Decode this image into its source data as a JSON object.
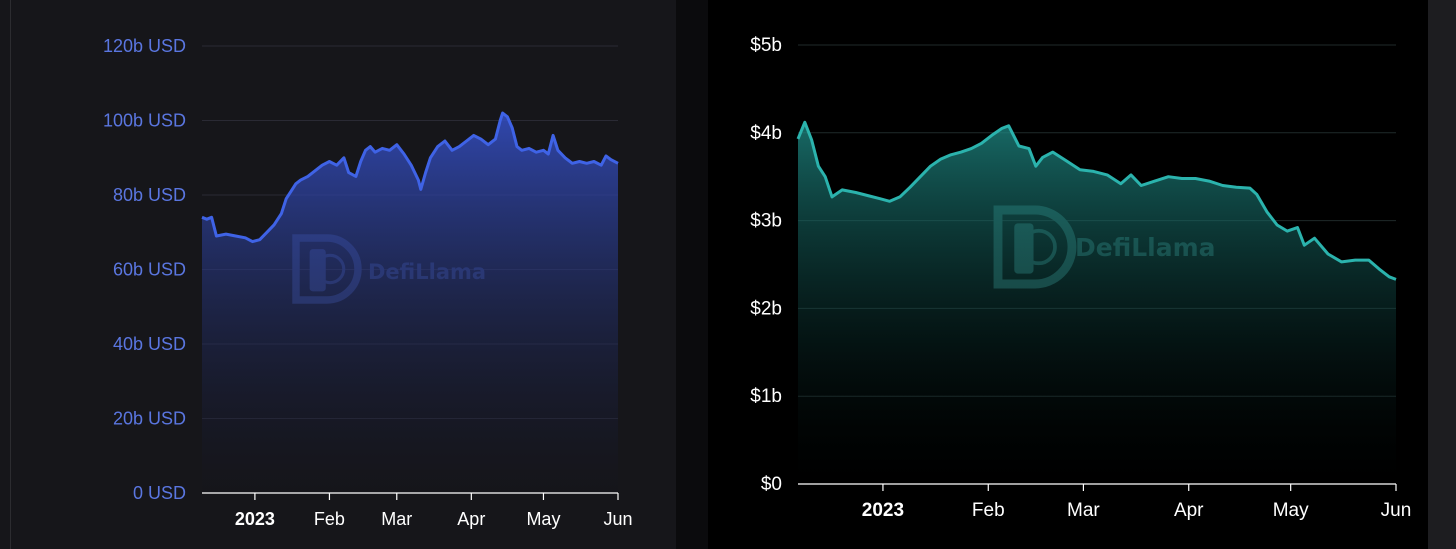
{
  "chart_data": [
    {
      "type": "area",
      "title": "",
      "xlabel": "",
      "ylabel": "",
      "unit_suffix": " USD",
      "ylim": [
        0,
        120
      ],
      "yticks": [
        0,
        20,
        40,
        60,
        80,
        100,
        120
      ],
      "ytick_labels": [
        "0 USD",
        "20b USD",
        "40b USD",
        "60b USD",
        "80b USD",
        "100b USD",
        "120b USD"
      ],
      "xticks": [
        {
          "label": "2023",
          "date": "2023-01-01",
          "bold": true
        },
        {
          "label": "Feb",
          "date": "2023-02-01",
          "bold": false
        },
        {
          "label": "Mar",
          "date": "2023-03-01",
          "bold": false
        },
        {
          "label": "Apr",
          "date": "2023-04-01",
          "bold": false
        },
        {
          "label": "May",
          "date": "2023-05-01",
          "bold": false
        },
        {
          "label": "Jun",
          "date": "2023-06-01",
          "bold": false
        }
      ],
      "xrange": [
        "2022-12-10",
        "2023-06-01"
      ],
      "grid": true,
      "line_color": "#3f63e6",
      "tick_color": "#5a76e0",
      "points": [
        [
          "2022-12-10",
          74
        ],
        [
          "2022-12-12",
          73.5
        ],
        [
          "2022-12-14",
          74
        ],
        [
          "2022-12-16",
          69
        ],
        [
          "2022-12-20",
          69.5
        ],
        [
          "2022-12-24",
          69
        ],
        [
          "2022-12-28",
          68.5
        ],
        [
          "2022-12-31",
          67.5
        ],
        [
          "2023-01-03",
          68
        ],
        [
          "2023-01-06",
          70
        ],
        [
          "2023-01-09",
          72
        ],
        [
          "2023-01-12",
          75
        ],
        [
          "2023-01-14",
          79
        ],
        [
          "2023-01-16",
          81
        ],
        [
          "2023-01-18",
          83
        ],
        [
          "2023-01-20",
          84
        ],
        [
          "2023-01-23",
          85
        ],
        [
          "2023-01-26",
          86.5
        ],
        [
          "2023-01-29",
          88
        ],
        [
          "2023-02-01",
          89
        ],
        [
          "2023-02-04",
          88
        ],
        [
          "2023-02-07",
          90
        ],
        [
          "2023-02-09",
          86
        ],
        [
          "2023-02-12",
          85
        ],
        [
          "2023-02-14",
          89
        ],
        [
          "2023-02-16",
          92
        ],
        [
          "2023-02-18",
          93
        ],
        [
          "2023-02-20",
          91.5
        ],
        [
          "2023-02-23",
          92.5
        ],
        [
          "2023-02-26",
          92
        ],
        [
          "2023-03-01",
          93.5
        ],
        [
          "2023-03-04",
          91
        ],
        [
          "2023-03-07",
          88
        ],
        [
          "2023-03-10",
          84
        ],
        [
          "2023-03-11",
          81.5
        ],
        [
          "2023-03-13",
          86
        ],
        [
          "2023-03-15",
          90
        ],
        [
          "2023-03-18",
          93
        ],
        [
          "2023-03-21",
          94.5
        ],
        [
          "2023-03-24",
          92
        ],
        [
          "2023-03-27",
          93
        ],
        [
          "2023-03-30",
          94.5
        ],
        [
          "2023-04-02",
          96
        ],
        [
          "2023-04-05",
          95
        ],
        [
          "2023-04-08",
          93.5
        ],
        [
          "2023-04-11",
          95
        ],
        [
          "2023-04-13",
          100
        ],
        [
          "2023-04-14",
          102
        ],
        [
          "2023-04-16",
          101
        ],
        [
          "2023-04-18",
          98
        ],
        [
          "2023-04-20",
          93
        ],
        [
          "2023-04-22",
          92
        ],
        [
          "2023-04-25",
          92.5
        ],
        [
          "2023-04-28",
          91.5
        ],
        [
          "2023-05-01",
          92
        ],
        [
          "2023-05-03",
          91
        ],
        [
          "2023-05-05",
          96
        ],
        [
          "2023-05-07",
          92
        ],
        [
          "2023-05-10",
          90
        ],
        [
          "2023-05-13",
          88.5
        ],
        [
          "2023-05-16",
          89
        ],
        [
          "2023-05-19",
          88.5
        ],
        [
          "2023-05-22",
          89
        ],
        [
          "2023-05-25",
          88
        ],
        [
          "2023-05-27",
          90.5
        ],
        [
          "2023-05-29",
          89.5
        ],
        [
          "2023-06-01",
          88.5
        ]
      ]
    },
    {
      "type": "area",
      "title": "",
      "xlabel": "",
      "ylabel": "",
      "unit_prefix": "$",
      "ylim": [
        0,
        5
      ],
      "yticks": [
        0,
        1,
        2,
        3,
        4,
        5
      ],
      "ytick_labels": [
        "$0",
        "$1b",
        "$2b",
        "$3b",
        "$4b",
        "$5b"
      ],
      "xticks": [
        {
          "label": "2023",
          "date": "2023-01-01",
          "bold": true
        },
        {
          "label": "Feb",
          "date": "2023-02-01",
          "bold": false
        },
        {
          "label": "Mar",
          "date": "2023-03-01",
          "bold": false
        },
        {
          "label": "Apr",
          "date": "2023-04-01",
          "bold": false
        },
        {
          "label": "May",
          "date": "2023-05-01",
          "bold": false
        },
        {
          "label": "Jun",
          "date": "2023-06-01",
          "bold": false
        }
      ],
      "xrange": [
        "2022-12-07",
        "2023-06-01"
      ],
      "grid": true,
      "line_color": "#2bb3ad",
      "tick_color": "#ffffff",
      "points": [
        [
          "2022-12-07",
          3.93
        ],
        [
          "2022-12-09",
          4.12
        ],
        [
          "2022-12-11",
          3.92
        ],
        [
          "2022-12-13",
          3.62
        ],
        [
          "2022-12-15",
          3.5
        ],
        [
          "2022-12-17",
          3.27
        ],
        [
          "2022-12-20",
          3.35
        ],
        [
          "2022-12-24",
          3.32
        ],
        [
          "2022-12-28",
          3.28
        ],
        [
          "2022-12-31",
          3.25
        ],
        [
          "2023-01-03",
          3.22
        ],
        [
          "2023-01-06",
          3.27
        ],
        [
          "2023-01-09",
          3.38
        ],
        [
          "2023-01-12",
          3.5
        ],
        [
          "2023-01-15",
          3.62
        ],
        [
          "2023-01-18",
          3.7
        ],
        [
          "2023-01-21",
          3.75
        ],
        [
          "2023-01-24",
          3.78
        ],
        [
          "2023-01-27",
          3.82
        ],
        [
          "2023-01-30",
          3.88
        ],
        [
          "2023-02-02",
          3.97
        ],
        [
          "2023-02-05",
          4.05
        ],
        [
          "2023-02-07",
          4.08
        ],
        [
          "2023-02-10",
          3.85
        ],
        [
          "2023-02-13",
          3.82
        ],
        [
          "2023-02-15",
          3.62
        ],
        [
          "2023-02-17",
          3.72
        ],
        [
          "2023-02-20",
          3.78
        ],
        [
          "2023-02-24",
          3.68
        ],
        [
          "2023-02-28",
          3.58
        ],
        [
          "2023-03-04",
          3.56
        ],
        [
          "2023-03-08",
          3.52
        ],
        [
          "2023-03-12",
          3.42
        ],
        [
          "2023-03-15",
          3.52
        ],
        [
          "2023-03-18",
          3.4
        ],
        [
          "2023-03-22",
          3.45
        ],
        [
          "2023-03-26",
          3.5
        ],
        [
          "2023-03-30",
          3.48
        ],
        [
          "2023-04-03",
          3.48
        ],
        [
          "2023-04-07",
          3.45
        ],
        [
          "2023-04-11",
          3.4
        ],
        [
          "2023-04-15",
          3.38
        ],
        [
          "2023-04-19",
          3.37
        ],
        [
          "2023-04-21",
          3.3
        ],
        [
          "2023-04-24",
          3.1
        ],
        [
          "2023-04-27",
          2.95
        ],
        [
          "2023-04-30",
          2.88
        ],
        [
          "2023-05-03",
          2.92
        ],
        [
          "2023-05-05",
          2.72
        ],
        [
          "2023-05-08",
          2.8
        ],
        [
          "2023-05-12",
          2.62
        ],
        [
          "2023-05-16",
          2.53
        ],
        [
          "2023-05-20",
          2.55
        ],
        [
          "2023-05-24",
          2.55
        ],
        [
          "2023-05-27",
          2.45
        ],
        [
          "2023-05-30",
          2.36
        ],
        [
          "2023-06-01",
          2.33
        ]
      ]
    }
  ],
  "watermark": {
    "text": "DefiLlama",
    "icon": "defillama-llama-icon"
  }
}
